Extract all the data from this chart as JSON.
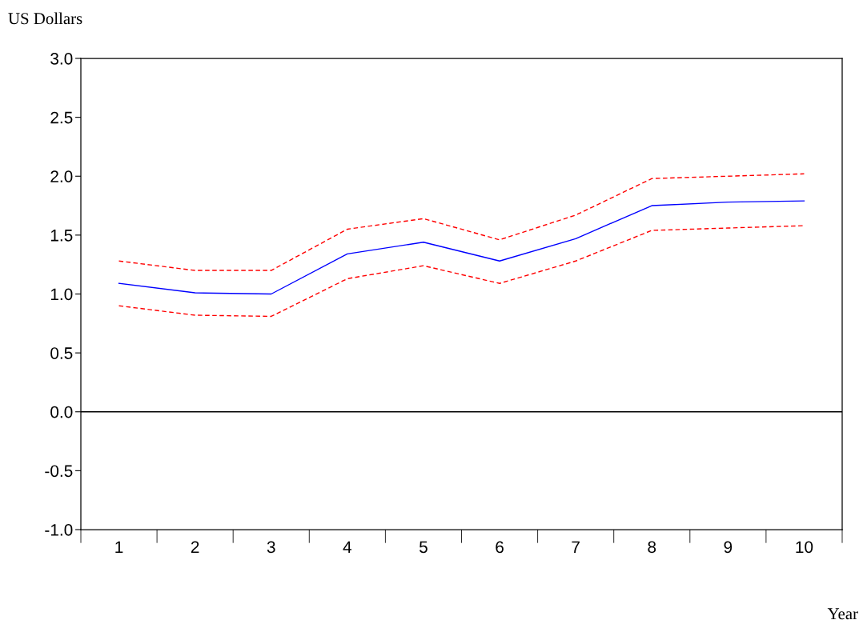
{
  "chart_data": {
    "type": "line",
    "xlabel": "Year",
    "ylabel": "US Dollars",
    "categories": [
      "1",
      "2",
      "3",
      "4",
      "5",
      "6",
      "7",
      "8",
      "9",
      "10"
    ],
    "series": [
      {
        "color": "#0000ff",
        "line_style": "solid",
        "values": [
          1.09,
          1.01,
          1.0,
          1.34,
          1.44,
          1.28,
          1.47,
          1.75,
          1.78,
          1.79
        ]
      },
      {
        "color": "#ff0000",
        "line_style": "dashed",
        "values": [
          1.28,
          1.2,
          1.2,
          1.55,
          1.64,
          1.46,
          1.67,
          1.98,
          2.0,
          2.02
        ]
      },
      {
        "color": "#ff0000",
        "line_style": "dashed",
        "values": [
          0.9,
          0.82,
          0.81,
          1.13,
          1.24,
          1.09,
          1.28,
          1.54,
          1.56,
          1.58
        ]
      }
    ],
    "ylim": [
      -1.0,
      3.0
    ],
    "yticks": [
      {
        "value": -1.0,
        "label": "-1.0"
      },
      {
        "value": -0.5,
        "label": "-0.5"
      },
      {
        "value": 0.0,
        "label": "0.0"
      },
      {
        "value": 0.5,
        "label": "0.5"
      },
      {
        "value": 1.0,
        "label": "1.0"
      },
      {
        "value": 1.5,
        "label": "1.5"
      },
      {
        "value": 2.0,
        "label": "2.0"
      },
      {
        "value": 2.5,
        "label": "2.5"
      },
      {
        "value": 3.0,
        "label": "3.0"
      }
    ],
    "ref_lines": [
      {
        "axis": "y",
        "value": 0.0,
        "color": "#000000",
        "line_style": "solid"
      }
    ],
    "grid": false,
    "legend": false,
    "marker": "none"
  }
}
